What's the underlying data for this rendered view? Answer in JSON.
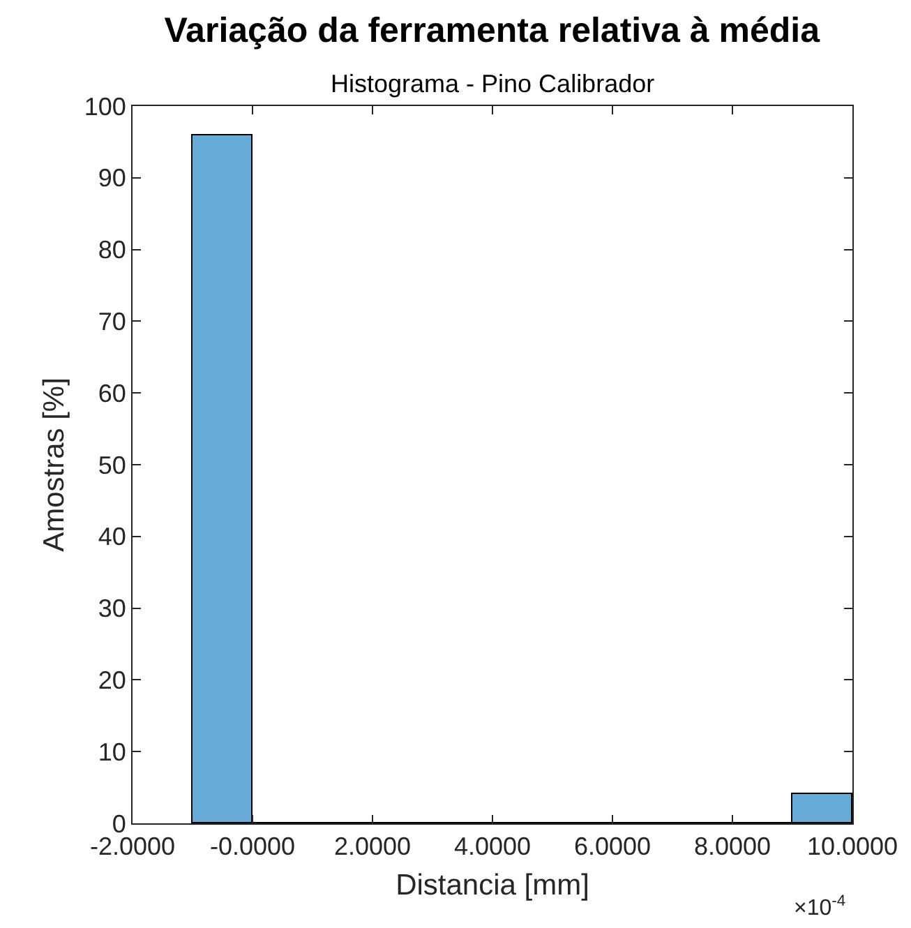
{
  "chart_data": {
    "type": "histogram",
    "title": "Variação da ferramenta relativa à média",
    "subtitle": "Histograma - Pino Calibrador",
    "xlabel": "Distancia [mm]",
    "ylabel": "Amostras [%]",
    "bins": [
      -1,
      0,
      1,
      2,
      3,
      4,
      5,
      6,
      7,
      8,
      9,
      10
    ],
    "values": [
      96,
      0,
      0,
      0,
      0,
      0,
      0,
      0,
      0,
      0,
      4
    ],
    "color": "#66aad7",
    "xlim": [
      -2,
      10
    ],
    "xticks": [
      {
        "value": -2,
        "label": "-2.0000"
      },
      {
        "value": 0,
        "label": "-0.0000"
      },
      {
        "value": 2,
        "label": "2.0000"
      },
      {
        "value": 4,
        "label": "4.0000"
      },
      {
        "value": 6,
        "label": "6.0000"
      },
      {
        "value": 8,
        "label": "8.0000"
      },
      {
        "value": 10,
        "label": "10.0000"
      }
    ],
    "ylim": [
      0,
      100
    ],
    "yticks": [
      0,
      10,
      20,
      30,
      40,
      50,
      60,
      70,
      80,
      90,
      100
    ],
    "annotations": [
      "×10$^{-4}$"
    ],
    "grid": false
  }
}
